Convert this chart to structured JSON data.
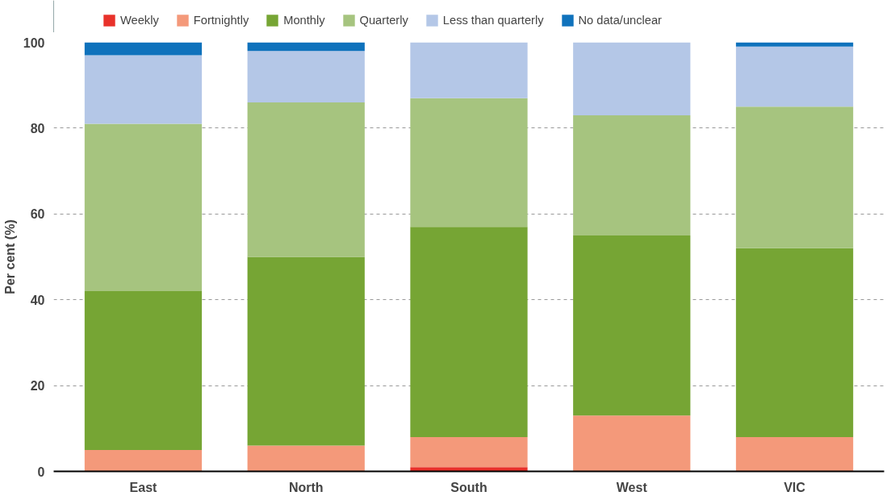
{
  "chart_data": {
    "type": "bar",
    "stacked": true,
    "ylabel": "Per cent (%)",
    "categories": [
      "East",
      "North",
      "South",
      "West",
      "VIC"
    ],
    "series": [
      {
        "name": "Weekly",
        "color": "#e8312a",
        "values": [
          0,
          0,
          1,
          0,
          null
        ]
      },
      {
        "name": "Fortnightly",
        "color": "#f4997a",
        "values": [
          5,
          6,
          7,
          13,
          8
        ]
      },
      {
        "name": "Monthly",
        "color": "#76a534",
        "values": [
          37,
          44,
          49,
          42,
          44
        ]
      },
      {
        "name": "Quarterly",
        "color": "#a6c47f",
        "values": [
          39,
          36,
          30,
          28,
          33
        ]
      },
      {
        "name": "Less than quarterly",
        "color": "#b4c7e7",
        "values": [
          16,
          12,
          13,
          17,
          14
        ]
      },
      {
        "name": "No data/unclear",
        "color": "#0f72bc",
        "values": [
          3,
          2,
          0,
          0,
          1
        ]
      }
    ],
    "ylim": [
      0,
      100
    ],
    "yticks": [
      0,
      20,
      40,
      60,
      80,
      100
    ],
    "grid": "y",
    "legend": "top"
  }
}
